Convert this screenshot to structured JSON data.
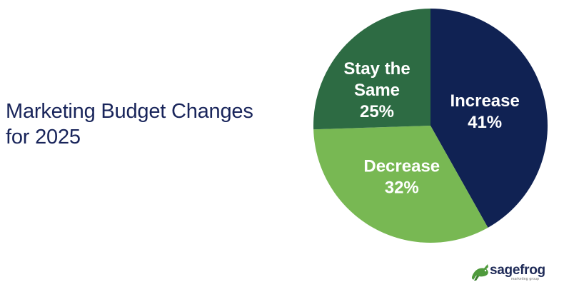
{
  "title_lines": [
    "Marketing Budget Changes",
    "for 2025"
  ],
  "logo": {
    "name": "sagefrog",
    "tagline": "marketing group"
  },
  "colors": {
    "increase": "#102253",
    "decrease": "#78b853",
    "stay_the_same": "#2d6b43",
    "title": "#18245a"
  },
  "chart_data": {
    "type": "pie",
    "title": "Marketing Budget Changes for 2025",
    "slices": [
      {
        "label_lines": [
          "Increase"
        ],
        "value": 41,
        "value_label": "41%"
      },
      {
        "label_lines": [
          "Decrease"
        ],
        "value": 32,
        "value_label": "32%"
      },
      {
        "label_lines": [
          "Stay the",
          "Same"
        ],
        "value": 25,
        "value_label": "25%"
      }
    ],
    "legend": "none",
    "start_direction": "top",
    "direction": "clockwise"
  }
}
